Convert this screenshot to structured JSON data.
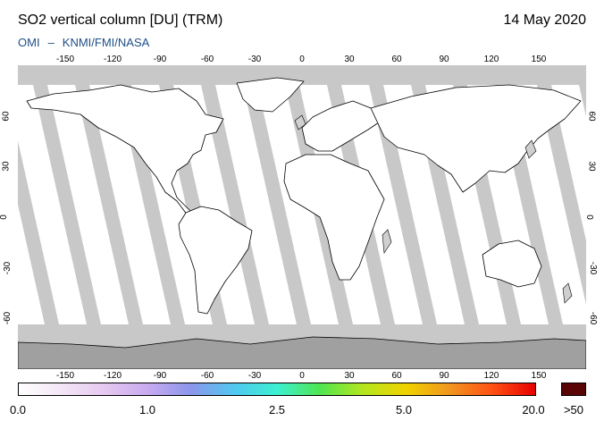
{
  "title": "SO2 vertical column [DU] (TRM)",
  "date": "14 May 2020",
  "credit": {
    "instrument": "OMI",
    "separator": "–",
    "agencies": "KNMI/FMI/NASA"
  },
  "map": {
    "projection": "equirectangular",
    "lon_range": [
      -180,
      180
    ],
    "lat_range": [
      -90,
      90
    ],
    "lon_ticks": [
      "-150",
      "-120",
      "-90",
      "-60",
      "-30",
      "0",
      "30",
      "60",
      "90",
      "120",
      "150"
    ],
    "lat_ticks": [
      "60",
      "30",
      "0",
      "-30",
      "-60"
    ],
    "colors": {
      "ocean": "#ffffff",
      "no_data": "#c8c8c8",
      "polar_no_data": "#a0a0a0",
      "coast": "#000000"
    }
  },
  "colorbar": {
    "labels": [
      "0.0",
      "1.0",
      "2.5",
      "5.0",
      "20.0"
    ],
    "overflow_label": ">50",
    "colors": [
      "#ffffff",
      "#f3e6f6",
      "#e6c8f0",
      "#c8aaf0",
      "#8c96ec",
      "#50c8f0",
      "#3cf0d2",
      "#50e650",
      "#b4e61e",
      "#f0d200",
      "#f0961e",
      "#ff5014",
      "#e60000"
    ],
    "overflow_color": "#5a0505"
  }
}
